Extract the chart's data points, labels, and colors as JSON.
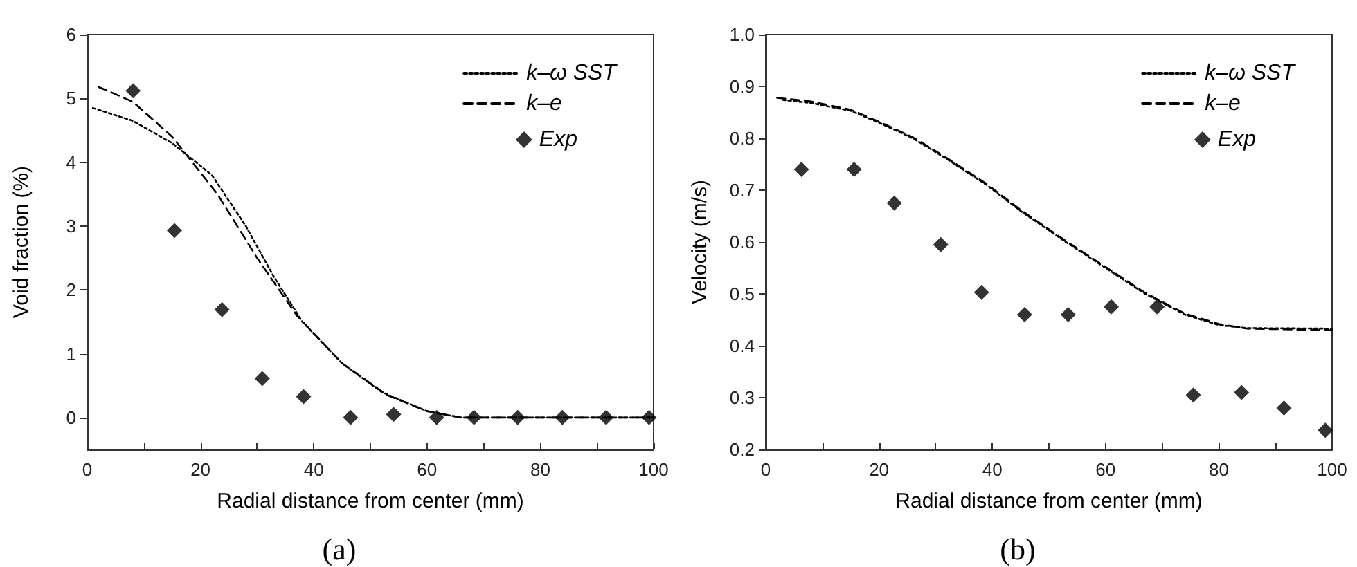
{
  "chart_data": [
    {
      "type": "line",
      "xlabel": "Radial distance from center (mm)",
      "ylabel": "Void fraction (%)",
      "annotations": [
        "(a)"
      ],
      "xlim": [
        0,
        100
      ],
      "ylim": [
        -0.5,
        6
      ],
      "xticks": [
        0,
        {
          "value": 10,
          "label": null
        },
        20,
        {
          "value": 30,
          "label": null
        },
        40,
        {
          "value": 50,
          "label": null
        },
        60,
        {
          "value": 70,
          "label": null
        },
        80,
        {
          "value": 90,
          "label": null
        },
        100
      ],
      "yticks": [
        0,
        1,
        2,
        3,
        4,
        5,
        6
      ],
      "grid": false,
      "legend": "top right",
      "series": [
        {
          "name": "k–ω SST",
          "color": "#000000",
          "marker": "none",
          "line_style": "dotted",
          "x": [
            1,
            8,
            15,
            22,
            28,
            33,
            38,
            45,
            52,
            60,
            66,
            100
          ],
          "values": [
            4.85,
            4.65,
            4.3,
            3.8,
            3.0,
            2.2,
            1.5,
            0.85,
            0.4,
            0.1,
            0,
            0
          ]
        },
        {
          "name": "k–e",
          "color": "#000000",
          "marker": "none",
          "line_style": "dashed",
          "x": [
            2,
            8,
            15,
            23,
            30,
            37,
            45,
            53,
            60,
            66,
            100
          ],
          "values": [
            5.18,
            4.95,
            4.4,
            3.5,
            2.5,
            1.6,
            0.85,
            0.35,
            0.1,
            0,
            0
          ]
        },
        {
          "name": "Exp",
          "type": "scatter",
          "color": "#000000",
          "marker": "diamond",
          "x": [
            8.1,
            15.4,
            23.8,
            30.9,
            38.2,
            46.5,
            54.1,
            61.7,
            68.3,
            76,
            83.9,
            91.6,
            99.2
          ],
          "values": [
            5.12,
            2.93,
            1.69,
            0.61,
            0.33,
            0,
            0.05,
            0,
            0,
            0,
            0,
            0,
            0
          ]
        }
      ]
    },
    {
      "type": "line",
      "xlabel": "Radial distance from center (mm)",
      "ylabel": "Velocity (m/s)",
      "annotations": [
        "(b)"
      ],
      "xlim": [
        0,
        100
      ],
      "ylim": [
        0.2,
        1
      ],
      "xticks": [
        0,
        {
          "value": 10,
          "label": null
        },
        20,
        {
          "value": 30,
          "label": null
        },
        40,
        {
          "value": 50,
          "label": null
        },
        60,
        {
          "value": 70,
          "label": null
        },
        80,
        {
          "value": 90,
          "label": null
        },
        100
      ],
      "yticks": [
        0.2,
        0.3,
        0.4,
        0.5,
        0.6,
        0.7,
        0.8,
        0.9,
        {
          "value": 1,
          "label": "1.0"
        }
      ],
      "grid": false,
      "legend": "top right",
      "series": [
        {
          "name": "k–ω SST",
          "color": "#000000",
          "marker": "none",
          "line_style": "dotted",
          "x": [
            3,
            8,
            15,
            20,
            26,
            32,
            39,
            45,
            53,
            60,
            67,
            74,
            80,
            85,
            100
          ],
          "values": [
            0.874,
            0.868,
            0.853,
            0.83,
            0.8,
            0.76,
            0.71,
            0.66,
            0.6,
            0.55,
            0.5,
            0.46,
            0.44,
            0.434,
            0.433
          ]
        },
        {
          "name": "k–e",
          "color": "#000000",
          "marker": "none",
          "line_style": "dashed",
          "x": [
            2,
            8,
            15,
            20,
            26,
            32,
            39,
            45,
            53,
            60,
            67,
            74,
            80,
            85,
            100
          ],
          "values": [
            0.878,
            0.871,
            0.855,
            0.832,
            0.802,
            0.762,
            0.712,
            0.662,
            0.602,
            0.552,
            0.502,
            0.462,
            0.442,
            0.433,
            0.43
          ]
        },
        {
          "name": "Exp",
          "type": "scatter",
          "color": "#000000",
          "marker": "diamond",
          "x": [
            6.3,
            15.6,
            22.7,
            30.9,
            38.1,
            45.7,
            53.4,
            61,
            69.1,
            75.5,
            84,
            91.5,
            98.8
          ],
          "values": [
            0.74,
            0.74,
            0.675,
            0.595,
            0.503,
            0.46,
            0.46,
            0.475,
            0.475,
            0.305,
            0.31,
            0.28,
            0.237
          ]
        }
      ]
    }
  ]
}
